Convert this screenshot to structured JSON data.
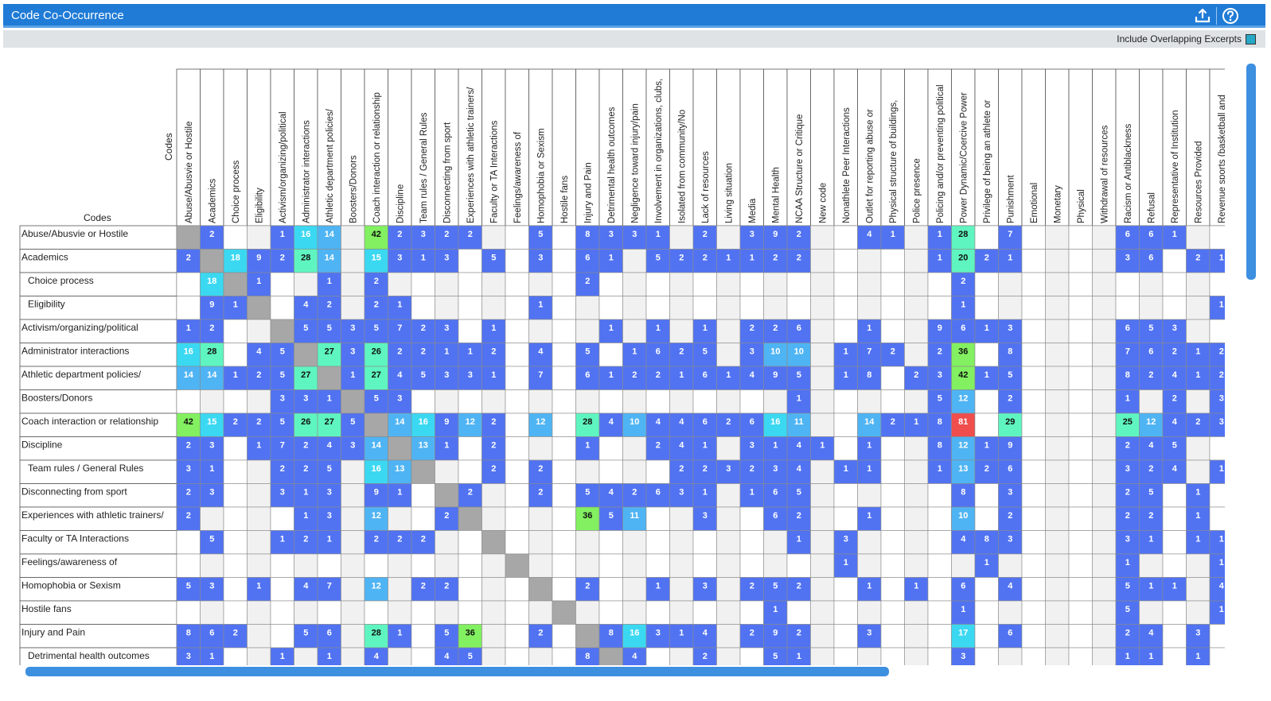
{
  "window": {
    "title": "Code Co-Occurrence"
  },
  "toolbar": {
    "export_icon": "upload-icon",
    "help_icon": "question-icon"
  },
  "options": {
    "overlap_label": "Include Overlapping Excerpts",
    "overlap_checked": true
  },
  "matrix": {
    "corner_col_label": "Codes",
    "corner_row_label": "Codes",
    "colors": {
      "diag": "#a7a7a7",
      "blue": "#5173f2",
      "lightblue": "#4fb4f3",
      "cyan": "#3bd8f2",
      "mint": "#5ff5c1",
      "green": "#82f060",
      "red": "#f04d4d",
      "empty_alt": "#f1f1f1"
    },
    "columns": [
      "Abuse/Abusvie or Hostile",
      "Academics",
      "Choice process",
      "Eligibility",
      "Activism/organizing/political",
      "Administrator interactions",
      "Athletic department policies/",
      "Boosters/Donors",
      "Coach interaction or relationship",
      "Discipline",
      "Team rules / General Rules",
      "Disconnecting from sport",
      "Experiences with athletic trainers/",
      "Faculty or TA Interactions",
      "Feelings/awareness of",
      "Homophobia or Sexism",
      "Hostile fans",
      "Injury and Pain",
      "Detrimental health outcomes",
      "Negligence toward injury/pain",
      "Involvement in organizations, clubs,",
      "Isolated from community/No",
      "Lack of resources",
      "Living situation",
      "Media",
      "Mental Health",
      "NCAA Structure or Critique",
      "New code",
      "Nonathlete Peer Interactions",
      "Outlet for reporting abuse or",
      "Physical structure of buildings,",
      "Police presence",
      "Policing and/or preventing political",
      "Power Dynamic/Coercive Power",
      "Privilege of being an athlete or",
      "Punishment",
      "Emotional",
      "Monetary",
      "Physical",
      "Withdrawal of resources",
      "Racism or Antiblackness",
      "Refusal",
      "Representative of Institution",
      "Resources Provided",
      "Revenue sports (basketball and"
    ],
    "rows": [
      {
        "label": "Abuse/Abusvie or Hostile",
        "indent": false,
        "cells": [
          "D",
          "2",
          "",
          "",
          "1",
          "16",
          "14",
          "",
          "42",
          "2",
          "3",
          "2",
          "2",
          "",
          "",
          "5",
          "",
          "8",
          "3",
          "3",
          "1",
          "",
          "2",
          "",
          "3",
          "9",
          "2",
          "",
          "",
          "4",
          "1",
          "",
          "1",
          "28",
          "",
          "7",
          "",
          "",
          "",
          "",
          "6",
          "6",
          "1",
          "",
          ""
        ]
      },
      {
        "label": "Academics",
        "indent": false,
        "cells": [
          "2",
          "D",
          "18",
          "9",
          "2",
          "28",
          "14",
          "",
          "15",
          "3",
          "1",
          "3",
          "",
          "5",
          "",
          "3",
          "",
          "6",
          "1",
          "",
          "5",
          "2",
          "2",
          "1",
          "1",
          "2",
          "2",
          "",
          "",
          "",
          "",
          "",
          "1",
          "20",
          "2",
          "1",
          "",
          "",
          "",
          "",
          "3",
          "6",
          "",
          "2",
          "1"
        ]
      },
      {
        "label": "Choice process",
        "indent": true,
        "cells": [
          "",
          "18",
          "D",
          "1",
          "",
          "",
          "1",
          "",
          "2",
          "",
          "",
          "",
          "",
          "",
          "",
          "",
          "",
          "2",
          "",
          "",
          "",
          "",
          "",
          "",
          "",
          "",
          "",
          "",
          "",
          "",
          "",
          "",
          "",
          "2",
          "",
          "",
          "",
          "",
          "",
          "",
          "",
          "",
          "",
          "",
          ""
        ]
      },
      {
        "label": "Eligibility",
        "indent": true,
        "cells": [
          "",
          "9",
          "1",
          "D",
          "",
          "4",
          "2",
          "",
          "2",
          "1",
          "",
          "",
          "",
          "",
          "",
          "1",
          "",
          "",
          "",
          "",
          "",
          "",
          "",
          "",
          "",
          "",
          "",
          "",
          "",
          "",
          "",
          "",
          "",
          "1",
          "",
          "",
          "",
          "",
          "",
          "",
          "",
          "",
          "",
          "",
          "1"
        ]
      },
      {
        "label": "Activism/organizing/political",
        "indent": false,
        "cells": [
          "1",
          "2",
          "",
          "",
          "D",
          "5",
          "5",
          "3",
          "5",
          "7",
          "2",
          "3",
          "",
          "1",
          "",
          "",
          "",
          "",
          "1",
          "",
          "1",
          "",
          "1",
          "",
          "2",
          "2",
          "6",
          "",
          "",
          "1",
          "",
          "",
          "9",
          "6",
          "1",
          "3",
          "",
          "",
          "",
          "",
          "6",
          "5",
          "3",
          "",
          ""
        ]
      },
      {
        "label": "Administrator interactions",
        "indent": false,
        "cells": [
          "16",
          "28",
          "",
          "4",
          "5",
          "D",
          "27",
          "3",
          "26",
          "2",
          "2",
          "1",
          "1",
          "2",
          "",
          "4",
          "",
          "5",
          "",
          "1",
          "6",
          "2",
          "5",
          "",
          "3",
          "10",
          "10",
          "",
          "1",
          "7",
          "2",
          "",
          "2",
          "36",
          "",
          "8",
          "",
          "",
          "",
          "",
          "7",
          "6",
          "2",
          "1",
          "2"
        ]
      },
      {
        "label": "Athletic department policies/",
        "indent": false,
        "cells": [
          "14",
          "14",
          "1",
          "2",
          "5",
          "27",
          "D",
          "1",
          "27",
          "4",
          "5",
          "3",
          "3",
          "1",
          "",
          "7",
          "",
          "6",
          "1",
          "2",
          "2",
          "1",
          "6",
          "1",
          "4",
          "9",
          "5",
          "",
          "1",
          "8",
          "",
          "2",
          "3",
          "42",
          "1",
          "5",
          "",
          "",
          "",
          "",
          "8",
          "2",
          "4",
          "1",
          "2"
        ]
      },
      {
        "label": "Boosters/Donors",
        "indent": false,
        "cells": [
          "",
          "",
          "",
          "",
          "3",
          "3",
          "1",
          "D",
          "5",
          "3",
          "",
          "",
          "",
          "",
          "",
          "",
          "",
          "",
          "",
          "",
          "",
          "",
          "",
          "",
          "",
          "",
          "1",
          "",
          "",
          "",
          "",
          "",
          "5",
          "12",
          "",
          "2",
          "",
          "",
          "",
          "",
          "1",
          "",
          "2",
          "",
          "3"
        ]
      },
      {
        "label": "Coach interaction or relationship",
        "indent": false,
        "cells": [
          "42",
          "15",
          "2",
          "2",
          "5",
          "26",
          "27",
          "5",
          "D",
          "14",
          "16",
          "9",
          "12",
          "2",
          "",
          "12",
          "",
          "28",
          "4",
          "10",
          "4",
          "4",
          "6",
          "2",
          "6",
          "16",
          "11",
          "",
          "",
          "14",
          "2",
          "1",
          "8",
          "81",
          "",
          "29",
          "",
          "",
          "",
          "",
          "25",
          "12",
          "4",
          "2",
          "3"
        ]
      },
      {
        "label": "Discipline",
        "indent": false,
        "cells": [
          "2",
          "3",
          "",
          "1",
          "7",
          "2",
          "4",
          "3",
          "14",
          "D",
          "13",
          "1",
          "",
          "2",
          "",
          "",
          "",
          "1",
          "",
          "",
          "2",
          "4",
          "1",
          "",
          "3",
          "1",
          "4",
          "1",
          "",
          "1",
          "",
          "",
          "8",
          "12",
          "1",
          "9",
          "",
          "",
          "",
          "",
          "2",
          "4",
          "5",
          "",
          ""
        ]
      },
      {
        "label": "Team rules / General Rules",
        "indent": true,
        "cells": [
          "3",
          "1",
          "",
          "",
          "2",
          "2",
          "5",
          "",
          "16",
          "13",
          "D",
          "",
          "",
          "2",
          "",
          "2",
          "",
          "",
          "",
          "",
          "",
          "2",
          "2",
          "3",
          "2",
          "3",
          "4",
          "",
          "1",
          "1",
          "",
          "",
          "1",
          "13",
          "2",
          "6",
          "",
          "",
          "",
          "",
          "3",
          "2",
          "4",
          "",
          "1"
        ]
      },
      {
        "label": "Disconnecting from sport",
        "indent": false,
        "cells": [
          "2",
          "3",
          "",
          "",
          "3",
          "1",
          "3",
          "",
          "9",
          "1",
          "",
          "D",
          "2",
          "",
          "",
          "2",
          "",
          "5",
          "4",
          "2",
          "6",
          "3",
          "1",
          "",
          "1",
          "6",
          "5",
          "",
          "",
          "",
          "",
          "",
          "",
          "8",
          "",
          "3",
          "",
          "",
          "",
          "",
          "2",
          "5",
          "",
          "1",
          ""
        ]
      },
      {
        "label": "Experiences with athletic trainers/",
        "indent": false,
        "cells": [
          "2",
          "",
          "",
          "",
          "",
          "1",
          "3",
          "",
          "12",
          "",
          "",
          "2",
          "D",
          "",
          "",
          "",
          "",
          "36",
          "5",
          "11",
          "",
          "",
          "3",
          "",
          "",
          "6",
          "2",
          "",
          "",
          "1",
          "",
          "",
          "",
          "10",
          "",
          "2",
          "",
          "",
          "",
          "",
          "2",
          "2",
          "",
          "1",
          ""
        ]
      },
      {
        "label": "Faculty or TA Interactions",
        "indent": false,
        "cells": [
          "",
          "5",
          "",
          "",
          "1",
          "2",
          "1",
          "",
          "2",
          "2",
          "2",
          "",
          "",
          "D",
          "",
          "",
          "",
          "",
          "",
          "",
          "",
          "",
          "",
          "",
          "",
          "",
          "1",
          "",
          "3",
          "",
          "",
          "",
          "",
          "4",
          "8",
          "3",
          "",
          "",
          "",
          "",
          "3",
          "1",
          "",
          "1",
          "1"
        ]
      },
      {
        "label": "Feelings/awareness of",
        "indent": false,
        "cells": [
          "",
          "",
          "",
          "",
          "",
          "",
          "",
          "",
          "",
          "",
          "",
          "",
          "",
          "",
          "D",
          "",
          "",
          "",
          "",
          "",
          "",
          "",
          "",
          "",
          "",
          "",
          "",
          "",
          "1",
          "",
          "",
          "",
          "",
          "",
          "1",
          "",
          "",
          "",
          "",
          "",
          "1",
          "",
          "",
          "",
          "1"
        ]
      },
      {
        "label": "Homophobia or Sexism",
        "indent": false,
        "cells": [
          "5",
          "3",
          "",
          "1",
          "",
          "4",
          "7",
          "",
          "12",
          "",
          "2",
          "2",
          "",
          "",
          "",
          "D",
          "",
          "2",
          "",
          "",
          "1",
          "",
          "3",
          "",
          "2",
          "5",
          "2",
          "",
          "",
          "1",
          "",
          "1",
          "",
          "6",
          "",
          "4",
          "",
          "",
          "",
          "",
          "5",
          "1",
          "1",
          "",
          "4"
        ]
      },
      {
        "label": "Hostile fans",
        "indent": false,
        "cells": [
          "",
          "",
          "",
          "",
          "",
          "",
          "",
          "",
          "",
          "",
          "",
          "",
          "",
          "",
          "",
          "",
          "D",
          "",
          "",
          "",
          "",
          "",
          "",
          "",
          "",
          "1",
          "",
          "",
          "",
          "",
          "",
          "",
          "",
          "1",
          "",
          "",
          "",
          "",
          "",
          "",
          "5",
          "",
          "",
          "",
          "1"
        ]
      },
      {
        "label": "Injury and Pain",
        "indent": false,
        "cells": [
          "8",
          "6",
          "2",
          "",
          "",
          "5",
          "6",
          "",
          "28",
          "1",
          "",
          "5",
          "36",
          "",
          "",
          "2",
          "",
          "D",
          "8",
          "16",
          "3",
          "1",
          "4",
          "",
          "2",
          "9",
          "2",
          "",
          "",
          "3",
          "",
          "",
          "",
          "17",
          "",
          "6",
          "",
          "",
          "",
          "",
          "2",
          "4",
          "",
          "3",
          ""
        ]
      },
      {
        "label": "Detrimental health outcomes",
        "indent": true,
        "cells": [
          "3",
          "1",
          "",
          "",
          "1",
          "",
          "1",
          "",
          "4",
          "",
          "",
          "4",
          "5",
          "",
          "",
          "",
          "",
          "8",
          "D",
          "4",
          "",
          "",
          "2",
          "",
          "",
          "5",
          "1",
          "",
          "",
          "",
          "",
          "",
          "",
          "3",
          "",
          "",
          "",
          "",
          "",
          "",
          "1",
          "1",
          "",
          "1",
          ""
        ]
      }
    ]
  }
}
